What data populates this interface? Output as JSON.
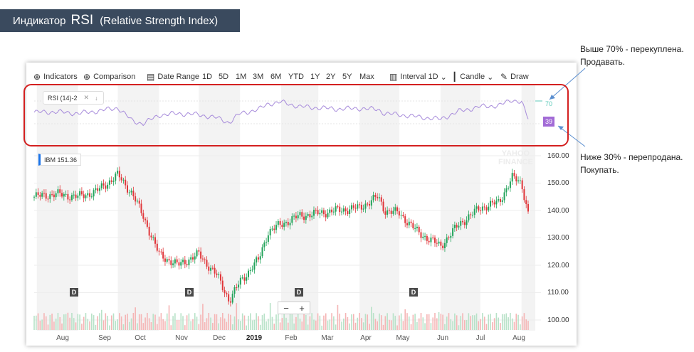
{
  "slide": {
    "title_word": "Индикатор",
    "title_rsi": "RSI",
    "title_full": "(Relative Strength Index)"
  },
  "toolbar": {
    "indicators": "Indicators",
    "comparison": "Comparison",
    "date_range": "Date Range",
    "ranges": [
      "1D",
      "5D",
      "1M",
      "3M",
      "6M",
      "YTD",
      "1Y",
      "2Y",
      "5Y",
      "Max"
    ],
    "interval_label": "Interval",
    "interval_value": "1D",
    "candle": "Candle",
    "draw": "Draw"
  },
  "rsi": {
    "legend": "RSI (14)-2",
    "level_overbought": "70",
    "current": "39",
    "colors": {
      "line": "#a78bdb",
      "overbought": "#5cc9b8",
      "oversold": "#f08a8a",
      "badge": "#a26bd6"
    }
  },
  "price": {
    "ticker_tag": "IBM  151.36",
    "y_labels": [
      "160.00",
      "150.00",
      "140.00",
      "130.00",
      "120.00",
      "110.00",
      "100.00"
    ],
    "x_labels": [
      "Aug",
      "Sep",
      "Oct",
      "Nov",
      "Dec",
      "2019",
      "Feb",
      "Mar",
      "Apr",
      "May",
      "Jun",
      "Jul",
      "Aug"
    ],
    "dividend_marker": "D",
    "zoom_minus": "−",
    "zoom_plus": "+",
    "watermark_1": "YAHOO",
    "watermark_2": "FINANCE",
    "colors": {
      "up": "#22a35a",
      "down": "#e0363a",
      "volume_up": "#b8e2c8",
      "volume_down": "#f5b5b5",
      "band": "#f3f3f3"
    }
  },
  "annotations": {
    "overbought_line1": "Выше 70% - перекуплена.",
    "overbought_line2": "Продавать.",
    "oversold_line1": "Ниже 30% - перепродана.",
    "oversold_line2": "Покупать."
  },
  "chart_data": {
    "type": "candlestick",
    "ylim": [
      100,
      160
    ],
    "x": [
      "2018-07-30",
      "2018-08-15",
      "2018-09-01",
      "2018-09-15",
      "2018-10-01",
      "2018-10-12",
      "2018-10-20",
      "2018-11-01",
      "2018-11-15",
      "2018-12-01",
      "2018-12-15",
      "2018-12-24",
      "2019-01-01",
      "2019-01-15",
      "2019-01-22",
      "2019-02-01",
      "2019-02-15",
      "2019-03-01",
      "2019-03-15",
      "2019-04-01",
      "2019-04-15",
      "2019-04-20",
      "2019-05-01",
      "2019-05-15",
      "2019-06-01",
      "2019-06-15",
      "2019-07-01",
      "2019-07-15",
      "2019-07-25",
      "2019-08-01",
      "2019-08-06"
    ],
    "close": [
      145,
      146,
      145,
      147,
      153,
      146,
      138,
      124,
      120,
      124,
      116,
      107,
      114,
      122,
      132,
      135,
      138,
      139,
      140,
      141,
      145,
      140,
      139,
      132,
      127,
      135,
      141,
      143,
      152,
      150,
      139
    ],
    "rsi": [
      50,
      51,
      48,
      52,
      58,
      35,
      30,
      45,
      48,
      46,
      40,
      32,
      48,
      55,
      65,
      68,
      60,
      58,
      56,
      57,
      55,
      48,
      46,
      42,
      38,
      52,
      60,
      62,
      72,
      68,
      39
    ]
  }
}
